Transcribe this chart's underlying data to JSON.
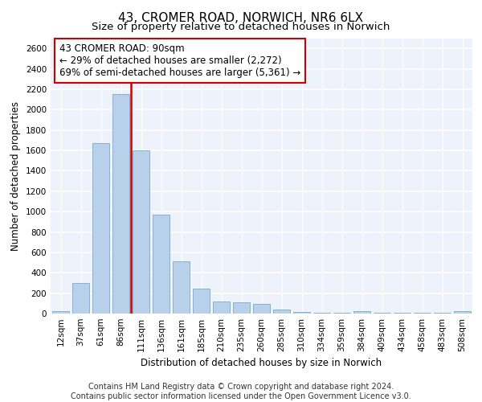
{
  "title_line1": "43, CROMER ROAD, NORWICH, NR6 6LX",
  "title_line2": "Size of property relative to detached houses in Norwich",
  "xlabel": "Distribution of detached houses by size in Norwich",
  "ylabel": "Number of detached properties",
  "categories": [
    "12sqm",
    "37sqm",
    "61sqm",
    "86sqm",
    "111sqm",
    "136sqm",
    "161sqm",
    "185sqm",
    "210sqm",
    "235sqm",
    "260sqm",
    "285sqm",
    "310sqm",
    "334sqm",
    "359sqm",
    "384sqm",
    "409sqm",
    "434sqm",
    "458sqm",
    "483sqm",
    "508sqm"
  ],
  "values": [
    20,
    300,
    1670,
    2150,
    1600,
    970,
    510,
    245,
    120,
    110,
    95,
    40,
    15,
    8,
    5,
    20,
    5,
    5,
    5,
    5,
    20
  ],
  "bar_color": "#b8d0ea",
  "bar_edge_color": "#7aaad0",
  "marker_color": "#cc0000",
  "annotation_text": "43 CROMER ROAD: 90sqm\n← 29% of detached houses are smaller (2,272)\n69% of semi-detached houses are larger (5,361) →",
  "annotation_box_color": "#ffffff",
  "annotation_box_edge": "#cc0000",
  "ylim": [
    0,
    2700
  ],
  "yticks": [
    0,
    200,
    400,
    600,
    800,
    1000,
    1200,
    1400,
    1600,
    1800,
    2000,
    2200,
    2400,
    2600
  ],
  "footer_line1": "Contains HM Land Registry data © Crown copyright and database right 2024.",
  "footer_line2": "Contains public sector information licensed under the Open Government Licence v3.0.",
  "background_color": "#eef2fa",
  "grid_color": "#ffffff",
  "title_fontsize": 11,
  "subtitle_fontsize": 9.5,
  "axis_label_fontsize": 8.5,
  "tick_fontsize": 7.5,
  "annotation_fontsize": 8.5,
  "footer_fontsize": 7
}
